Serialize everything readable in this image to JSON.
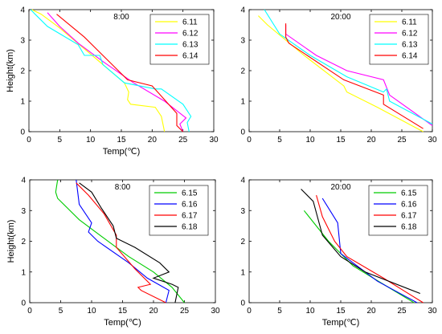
{
  "chart_data": [
    {
      "type": "line",
      "title": "8:00",
      "xlabel": "Temp(℃)",
      "ylabel": "Height(km)",
      "xlim": [
        0,
        30
      ],
      "ylim": [
        0,
        4
      ],
      "xticks": [
        0,
        5,
        10,
        15,
        20,
        25,
        30
      ],
      "yticks": [
        0,
        1,
        2,
        3,
        4
      ],
      "legend_position": "top-right",
      "series": [
        {
          "name": "6.11",
          "color": "#ffff00",
          "points": [
            [
              22,
              0
            ],
            [
              21.5,
              0.5
            ],
            [
              20.5,
              0.8
            ],
            [
              16.5,
              0.9
            ],
            [
              16,
              1.05
            ],
            [
              16.2,
              1.3
            ],
            [
              15.5,
              1.6
            ],
            [
              12,
              2.2
            ],
            [
              8.5,
              2.8
            ],
            [
              5,
              3.4
            ],
            [
              2,
              3.85
            ],
            [
              0.5,
              4
            ]
          ]
        },
        {
          "name": "6.12",
          "color": "#ff00ff",
          "points": [
            [
              25,
              0
            ],
            [
              24.5,
              0.25
            ],
            [
              25.5,
              0.45
            ],
            [
              22,
              1.0
            ],
            [
              17,
              1.6
            ],
            [
              12,
              2.3
            ],
            [
              8,
              2.9
            ],
            [
              5,
              3.45
            ],
            [
              3,
              3.9
            ]
          ]
        },
        {
          "name": "6.13",
          "color": "#00ffff",
          "points": [
            [
              26,
              0
            ],
            [
              25.7,
              0.3
            ],
            [
              26.3,
              0.5
            ],
            [
              25,
              0.9
            ],
            [
              21.5,
              1.4
            ],
            [
              20.5,
              1.4
            ],
            [
              15.5,
              1.6
            ],
            [
              12,
              2.2
            ],
            [
              11.5,
              2.5
            ],
            [
              9,
              2.5
            ],
            [
              8,
              2.85
            ],
            [
              3,
              3.45
            ],
            [
              1,
              3.85
            ],
            [
              0.3,
              4
            ]
          ]
        },
        {
          "name": "6.14",
          "color": "#ff0000",
          "points": [
            [
              25,
              0
            ],
            [
              24,
              0.2
            ],
            [
              24,
              0.6
            ],
            [
              20,
              1.5
            ],
            [
              16,
              1.7
            ],
            [
              12,
              2.5
            ],
            [
              9,
              3.1
            ],
            [
              6,
              3.6
            ],
            [
              4.5,
              3.85
            ]
          ]
        }
      ]
    },
    {
      "type": "line",
      "title": "20:00",
      "xlabel": "",
      "ylabel": "",
      "xlim": [
        0,
        30
      ],
      "ylim": [
        0,
        4
      ],
      "xticks": [
        0,
        5,
        10,
        15,
        20,
        25,
        30
      ],
      "yticks": [
        0,
        1,
        2,
        3,
        4
      ],
      "legend_position": "top-right",
      "series": [
        {
          "name": "6.11",
          "color": "#ffff00",
          "points": [
            [
              28.5,
              0
            ],
            [
              21,
              0.8
            ],
            [
              16,
              1.3
            ],
            [
              15.5,
              1.5
            ],
            [
              9,
              2.5
            ],
            [
              3,
              3.5
            ],
            [
              1.5,
              3.8
            ]
          ]
        },
        {
          "name": "6.12",
          "color": "#ff00ff",
          "points": [
            [
              30,
              0.2
            ],
            [
              23,
              1.2
            ],
            [
              22,
              1.7
            ],
            [
              16,
              2.0
            ],
            [
              11,
              2.5
            ],
            [
              6,
              3.2
            ],
            [
              6,
              3.5
            ]
          ]
        },
        {
          "name": "6.13",
          "color": "#00ffff",
          "points": [
            [
              30,
              0.25
            ],
            [
              23,
              1.0
            ],
            [
              22.5,
              1.4
            ],
            [
              22,
              1.3
            ],
            [
              16,
              1.8
            ],
            [
              10,
              2.5
            ],
            [
              5,
              3.2
            ],
            [
              2.5,
              4.0
            ]
          ]
        },
        {
          "name": "6.14",
          "color": "#ff0000",
          "points": [
            [
              28.5,
              0.1
            ],
            [
              22,
              0.9
            ],
            [
              22,
              1.2
            ],
            [
              15.5,
              1.7
            ],
            [
              6.5,
              2.9
            ],
            [
              6,
              3.1
            ],
            [
              6,
              3.55
            ]
          ]
        }
      ]
    },
    {
      "type": "line",
      "title": "8:00",
      "xlabel": "Temp(℃)",
      "ylabel": "Height(km)",
      "xlim": [
        0,
        30
      ],
      "ylim": [
        0,
        4
      ],
      "xticks": [
        0,
        5,
        10,
        15,
        20,
        25,
        30
      ],
      "yticks": [
        0,
        1,
        2,
        3,
        4
      ],
      "legend_position": "top-right",
      "series": [
        {
          "name": "6.15",
          "color": "#00cc00",
          "points": [
            [
              25,
              0
            ],
            [
              23,
              0.5
            ],
            [
              20,
              1.0
            ],
            [
              16,
              1.5
            ],
            [
              12,
              2.1
            ],
            [
              8,
              2.7
            ],
            [
              4.5,
              3.4
            ],
            [
              4.2,
              3.6
            ],
            [
              4.5,
              4.0
            ]
          ]
        },
        {
          "name": "6.16",
          "color": "#0000ff",
          "points": [
            [
              22,
              0
            ],
            [
              22.5,
              0.4
            ],
            [
              19,
              0.8
            ],
            [
              16,
              1.3
            ],
            [
              11,
              2.0
            ],
            [
              9.5,
              2.3
            ],
            [
              10,
              2.6
            ],
            [
              8,
              3.2
            ],
            [
              7.5,
              4.0
            ]
          ]
        },
        {
          "name": "6.17",
          "color": "#ff0000",
          "points": [
            [
              22,
              0
            ],
            [
              18,
              0.4
            ],
            [
              17.5,
              0.5
            ],
            [
              19.5,
              0.6
            ],
            [
              17,
              1.1
            ],
            [
              14,
              1.8
            ],
            [
              14,
              2.2
            ],
            [
              12,
              2.9
            ],
            [
              9.5,
              3.5
            ],
            [
              7.5,
              3.9
            ]
          ]
        },
        {
          "name": "6.18",
          "color": "#000000",
          "points": [
            [
              23.5,
              0
            ],
            [
              24,
              0.5
            ],
            [
              23,
              0.6
            ],
            [
              20,
              0.8
            ],
            [
              22.5,
              1.0
            ],
            [
              21,
              1.3
            ],
            [
              17,
              1.8
            ],
            [
              14,
              2.1
            ],
            [
              13.5,
              2.5
            ],
            [
              11.5,
              3.1
            ],
            [
              10,
              3.6
            ],
            [
              8,
              3.9
            ]
          ]
        }
      ]
    },
    {
      "type": "line",
      "title": "20:00",
      "xlabel": "Temp(℃)",
      "ylabel": "",
      "xlim": [
        0,
        30
      ],
      "ylim": [
        0,
        4
      ],
      "xticks": [
        0,
        5,
        10,
        15,
        20,
        25,
        30
      ],
      "yticks": [
        0,
        1,
        2,
        3,
        4
      ],
      "legend_position": "top-right",
      "series": [
        {
          "name": "6.15",
          "color": "#00cc00",
          "points": [
            [
              27,
              0
            ],
            [
              22,
              0.6
            ],
            [
              17,
              1.2
            ],
            [
              13,
              2.0
            ],
            [
              9,
              3.0
            ]
          ]
        },
        {
          "name": "6.16",
          "color": "#0000ff",
          "points": [
            [
              27.5,
              0
            ],
            [
              21,
              0.7
            ],
            [
              15,
              1.6
            ],
            [
              14.5,
              2.6
            ],
            [
              12,
              3.4
            ]
          ]
        },
        {
          "name": "6.17",
          "color": "#ff0000",
          "points": [
            [
              28.5,
              0
            ],
            [
              22,
              0.8
            ],
            [
              16,
              1.5
            ],
            [
              14,
              2.0
            ],
            [
              12,
              2.8
            ],
            [
              11,
              3.5
            ]
          ]
        },
        {
          "name": "6.18",
          "color": "#000000",
          "points": [
            [
              28,
              0.3
            ],
            [
              19,
              1.0
            ],
            [
              15,
              1.5
            ],
            [
              12,
              2.2
            ],
            [
              10.5,
              3.3
            ],
            [
              8.5,
              3.7
            ]
          ]
        }
      ]
    }
  ]
}
